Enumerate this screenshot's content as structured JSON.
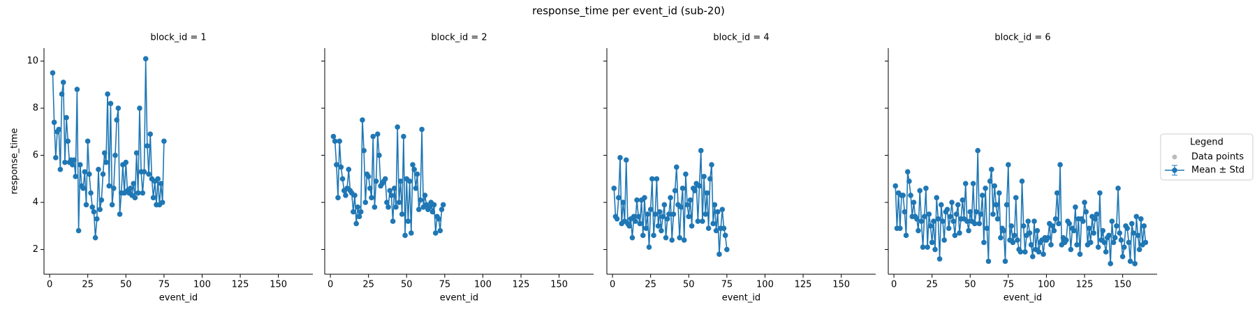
{
  "title": "response_time per event_id (sub-20)",
  "legend": {
    "title": "Legend",
    "position": "center right",
    "entries": [
      {
        "name": "Data points",
        "color": "#bbbbbb",
        "marker": "dot"
      },
      {
        "name": "Mean ± Std",
        "color": "#1f77b4",
        "marker": "errorbar"
      }
    ]
  },
  "chart_data": [
    {
      "type": "line",
      "title": "block_id = 1",
      "xlabel": "event_id",
      "ylabel": "response_time",
      "xlim": [
        -3.7,
        172.6
      ],
      "xticks": [
        0,
        25,
        50,
        75,
        100,
        125,
        150
      ],
      "ylim": [
        0.95,
        10.55
      ],
      "yticks": [
        2,
        4,
        6,
        8,
        10
      ],
      "series": [
        {
          "color": "#1f77b4",
          "x": [
            2,
            3,
            4,
            5,
            6,
            7,
            8,
            9,
            10,
            11,
            12,
            13,
            14,
            15,
            16,
            17,
            18,
            19,
            20,
            21,
            22,
            23,
            24,
            25,
            26,
            27,
            28,
            29,
            30,
            31,
            32,
            33,
            34,
            35,
            36,
            37,
            38,
            39,
            40,
            41,
            42,
            43,
            44,
            45,
            46,
            47,
            48,
            49,
            50,
            51,
            52,
            53,
            54,
            55,
            56,
            57,
            58,
            59,
            60,
            61,
            62,
            63,
            64,
            65,
            66,
            67,
            68,
            69,
            70,
            71,
            72,
            73,
            74,
            75
          ],
          "values": [
            9.5,
            7.4,
            5.9,
            7.0,
            7.1,
            5.4,
            8.6,
            9.1,
            5.7,
            7.6,
            6.6,
            5.7,
            5.8,
            5.6,
            5.8,
            5.1,
            8.8,
            2.8,
            5.6,
            4.7,
            4.6,
            5.3,
            3.9,
            6.6,
            5.2,
            4.4,
            3.8,
            3.6,
            2.5,
            3.3,
            5.4,
            3.7,
            4.1,
            5.2,
            6.1,
            5.7,
            8.6,
            4.7,
            8.2,
            3.9,
            4.6,
            6.0,
            7.5,
            8.0,
            3.5,
            4.4,
            5.6,
            4.4,
            5.7,
            4.5,
            4.4,
            4.6,
            4.3,
            4.8,
            4.2,
            6.1,
            4.4,
            8.0,
            5.3,
            4.4,
            5.3,
            10.1,
            6.4,
            5.2,
            6.9,
            5.0,
            4.2,
            4.9,
            3.9,
            5.0,
            3.9,
            4.8,
            4.0,
            6.6
          ]
        }
      ]
    },
    {
      "type": "line",
      "title": "block_id = 2",
      "xlabel": "event_id",
      "xlim": [
        -3.7,
        172.6
      ],
      "xticks": [
        0,
        25,
        50,
        75,
        100,
        125,
        150
      ],
      "ylim": [
        0.95,
        10.55
      ],
      "series": [
        {
          "color": "#1f77b4",
          "x": [
            2,
            3,
            4,
            5,
            6,
            7,
            8,
            9,
            10,
            11,
            12,
            13,
            14,
            15,
            16,
            17,
            18,
            19,
            20,
            21,
            22,
            23,
            24,
            25,
            26,
            27,
            28,
            29,
            30,
            31,
            32,
            33,
            34,
            35,
            36,
            37,
            38,
            39,
            40,
            41,
            42,
            43,
            44,
            45,
            46,
            47,
            48,
            49,
            50,
            51,
            52,
            53,
            54,
            55,
            56,
            57,
            58,
            59,
            60,
            61,
            62,
            63,
            64,
            65,
            66,
            67,
            68,
            69,
            70,
            71,
            72,
            73,
            74
          ],
          "values": [
            6.8,
            6.6,
            5.6,
            4.2,
            6.6,
            5.5,
            5.0,
            4.5,
            4.3,
            4.6,
            5.4,
            4.5,
            4.4,
            3.6,
            4.3,
            3.1,
            3.8,
            3.4,
            3.6,
            7.5,
            6.2,
            4.0,
            5.2,
            5.1,
            4.6,
            4.2,
            6.8,
            3.8,
            4.9,
            6.9,
            6.0,
            4.7,
            4.8,
            4.9,
            5.0,
            4.0,
            3.8,
            4.5,
            4.3,
            3.2,
            4.6,
            3.8,
            7.2,
            4.0,
            4.9,
            3.5,
            6.8,
            2.6,
            5.0,
            3.2,
            4.9,
            2.7,
            5.6,
            5.4,
            4.6,
            5.2,
            3.7,
            4.1,
            7.1,
            3.8,
            4.3,
            3.9,
            3.7,
            3.8,
            4.0,
            3.6,
            3.9,
            2.7,
            3.4,
            3.3,
            2.8,
            3.7,
            3.9
          ]
        }
      ]
    },
    {
      "type": "line",
      "title": "block_id = 4",
      "xlabel": "event_id",
      "xlim": [
        -3.7,
        172.6
      ],
      "xticks": [
        0,
        25,
        50,
        75,
        100,
        125,
        150
      ],
      "ylim": [
        0.95,
        10.55
      ],
      "series": [
        {
          "color": "#1f77b4",
          "x": [
            1,
            2,
            3,
            4,
            5,
            6,
            7,
            8,
            9,
            10,
            11,
            12,
            13,
            14,
            15,
            16,
            17,
            18,
            19,
            20,
            21,
            22,
            23,
            24,
            25,
            26,
            27,
            28,
            29,
            30,
            31,
            32,
            33,
            34,
            35,
            36,
            37,
            38,
            39,
            40,
            41,
            42,
            43,
            44,
            45,
            46,
            47,
            48,
            49,
            50,
            51,
            52,
            53,
            54,
            55,
            56,
            57,
            58,
            59,
            60,
            61,
            62,
            63,
            64,
            65,
            66,
            67,
            68,
            69,
            70,
            71,
            72,
            73,
            74,
            75
          ],
          "values": [
            4.6,
            3.4,
            3.3,
            4.2,
            5.9,
            3.1,
            4.0,
            3.2,
            5.8,
            3.1,
            3.0,
            3.3,
            2.5,
            3.4,
            3.2,
            4.1,
            3.4,
            3.1,
            4.1,
            2.6,
            4.2,
            2.9,
            3.5,
            2.1,
            3.7,
            5.0,
            2.6,
            3.5,
            5.0,
            3.0,
            3.6,
            2.8,
            3.4,
            3.9,
            2.5,
            3.3,
            3.5,
            4.2,
            2.4,
            3.5,
            4.5,
            5.5,
            3.9,
            2.5,
            3.8,
            4.6,
            2.4,
            5.2,
            3.9,
            3.4,
            4.1,
            3.0,
            4.6,
            4.5,
            4.8,
            3.2,
            4.7,
            6.2,
            3.2,
            5.1,
            3.5,
            4.4,
            2.9,
            5.0,
            5.6,
            3.1,
            3.9,
            2.8,
            3.6,
            1.8,
            2.9,
            3.7,
            2.9,
            2.6,
            2.0
          ]
        }
      ]
    },
    {
      "type": "line",
      "title": "block_id = 6",
      "xlabel": "event_id",
      "xlim": [
        -3.7,
        172.6
      ],
      "xticks": [
        0,
        25,
        50,
        75,
        100,
        125,
        150
      ],
      "ylim": [
        0.95,
        10.55
      ],
      "series": [
        {
          "color": "#1f77b4",
          "x": [
            1,
            2,
            3,
            4,
            5,
            6,
            7,
            8,
            9,
            10,
            11,
            12,
            13,
            14,
            15,
            16,
            17,
            18,
            19,
            20,
            21,
            22,
            23,
            24,
            25,
            26,
            27,
            28,
            29,
            30,
            31,
            32,
            33,
            34,
            35,
            36,
            37,
            38,
            39,
            40,
            41,
            42,
            43,
            44,
            45,
            46,
            47,
            48,
            49,
            50,
            51,
            52,
            53,
            54,
            55,
            56,
            57,
            58,
            59,
            60,
            61,
            62,
            63,
            64,
            65,
            66,
            67,
            68,
            69,
            70,
            71,
            72,
            73,
            74,
            75,
            76,
            77,
            78,
            79,
            80,
            81,
            82,
            83,
            84,
            85,
            86,
            87,
            88,
            89,
            90,
            91,
            92,
            93,
            94,
            95,
            96,
            97,
            98,
            99,
            100,
            101,
            102,
            103,
            104,
            105,
            106,
            107,
            108,
            109,
            110,
            111,
            112,
            113,
            114,
            115,
            116,
            117,
            118,
            119,
            120,
            121,
            122,
            123,
            124,
            125,
            126,
            127,
            128,
            129,
            130,
            131,
            132,
            133,
            134,
            135,
            136,
            137,
            138,
            139,
            140,
            141,
            142,
            143,
            144,
            145,
            146,
            147,
            148,
            149,
            150,
            151,
            152,
            153,
            154,
            155,
            156,
            157,
            158,
            159,
            160,
            161,
            162,
            163,
            164,
            165
          ],
          "values": [
            4.7,
            2.9,
            4.4,
            2.9,
            4.3,
            4.3,
            3.6,
            2.6,
            5.3,
            4.9,
            4.3,
            3.4,
            4.0,
            3.4,
            3.3,
            2.8,
            4.5,
            3.2,
            2.1,
            3.4,
            4.6,
            2.1,
            3.5,
            3.0,
            2.3,
            3.2,
            2.0,
            4.2,
            3.3,
            1.6,
            3.9,
            3.2,
            2.4,
            3.6,
            3.7,
            2.9,
            3.4,
            4.0,
            3.2,
            2.6,
            3.5,
            3.9,
            2.7,
            3.3,
            4.1,
            3.3,
            4.8,
            3.2,
            2.8,
            3.6,
            3.2,
            4.8,
            3.1,
            3.6,
            6.2,
            3.1,
            3.5,
            4.3,
            2.3,
            4.6,
            2.9,
            1.5,
            4.9,
            5.4,
            3.5,
            4.7,
            3.9,
            3.3,
            4.4,
            2.5,
            2.9,
            2.8,
            1.5,
            3.9,
            5.6,
            2.4,
            3.0,
            2.3,
            2.6,
            4.2,
            2.4,
            2.0,
            1.9,
            4.9,
            3.0,
            1.9,
            2.6,
            3.2,
            2.7,
            2.2,
            1.7,
            3.2,
            2.0,
            2.8,
            1.9,
            2.3,
            2.4,
            1.8,
            2.5,
            2.4,
            2.5,
            3.1,
            2.2,
            3.0,
            2.8,
            3.3,
            4.4,
            3.1,
            5.6,
            2.2,
            2.5,
            2.3,
            2.4,
            3.2,
            3.1,
            2.0,
            2.9,
            2.8,
            3.8,
            2.2,
            3.3,
            1.8,
            3.3,
            3.2,
            4.0,
            3.6,
            2.2,
            2.9,
            2.3,
            3.4,
            2.7,
            3.3,
            3.5,
            2.1,
            4.4,
            2.4,
            2.8,
            2.3,
            1.9,
            2.5,
            2.6,
            1.4,
            3.2,
            2.3,
            2.5,
            3.0,
            4.6,
            2.7,
            2.4,
            1.7,
            2.1,
            3.0,
            2.9,
            2.3,
            1.5,
            3.1,
            2.7,
            1.4,
            3.4,
            2.6,
            2.0,
            3.3,
            2.2,
            3.0,
            2.3
          ]
        }
      ]
    }
  ]
}
